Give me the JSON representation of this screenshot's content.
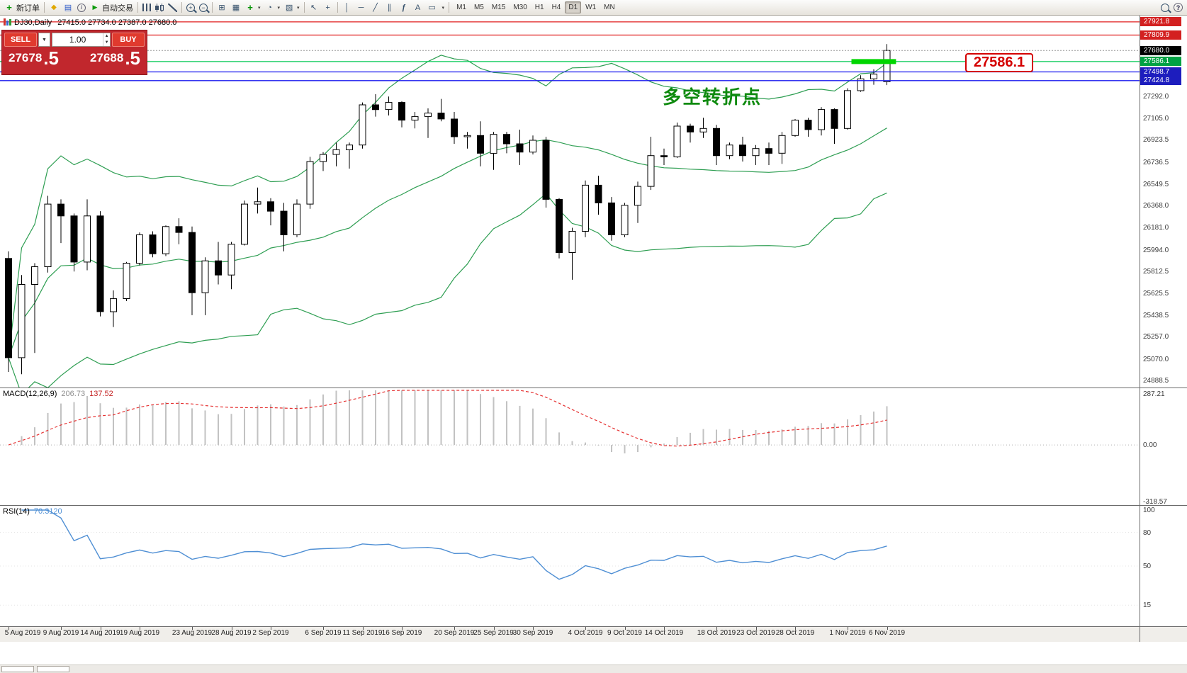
{
  "toolbar": {
    "new_order_label": "新订单",
    "autotrading_label": "自动交易",
    "timeframes": [
      "M1",
      "M5",
      "M15",
      "M30",
      "H1",
      "H4",
      "D1",
      "W1",
      "MN"
    ],
    "active_timeframe": "D1"
  },
  "chart": {
    "symbol_period": "DJ30,Daily",
    "ohlc_display": "27415.0 27734.0 27387.0 27680.0",
    "annotation": "多空转折点",
    "price_callout": "27586.1"
  },
  "trade_panel": {
    "sell_label": "SELL",
    "buy_label": "BUY",
    "lot_value": "1.00",
    "sell_price_main": "27678",
    "sell_price_frac": ".5",
    "buy_price_main": "27688",
    "buy_price_frac": ".5"
  },
  "price_scale": {
    "current": {
      "price": 27680.0,
      "label": "27680.0",
      "box_color": "#000000"
    },
    "lines": [
      {
        "price": 27921.8,
        "label": "27921.8",
        "color": "#e01f1f",
        "box_color": "#d32020"
      },
      {
        "price": 27809.9,
        "label": "27809.9",
        "color": "#e01f1f",
        "box_color": "#d32020"
      },
      {
        "price": 27586.1,
        "label": "27586.1",
        "color": "#00c853",
        "box_color": "#00a244"
      },
      {
        "price": 27498.7,
        "label": "27498.7",
        "color": "#1a1aee",
        "box_color": "#1d1dbe"
      },
      {
        "price": 27424.8,
        "label": "27424.8",
        "color": "#1a1aee",
        "box_color": "#1d1dbe"
      }
    ],
    "gridline_labels": [
      "27292.0",
      "27105.0",
      "26923.5",
      "26736.5",
      "26549.5",
      "26368.0",
      "26181.0",
      "25994.0",
      "25812.5",
      "25625.5",
      "25438.5",
      "25257.0",
      "25070.0",
      "24888.5"
    ],
    "highlight_segment": {
      "price": 27586.1,
      "start_index": 64.3,
      "end_index": 67.7,
      "color": "#00d600"
    }
  },
  "chart_data": {
    "type": "candlestick",
    "symbol": "DJ30",
    "timeframe": "Daily",
    "price_range_top": 27957,
    "price_range_bottom": 24870,
    "bollinger": {
      "period": 20,
      "deviation": 2,
      "color": "#2e9e52"
    },
    "dates": [
      "5 Aug",
      "6 Aug",
      "7 Aug",
      "8 Aug",
      "9 Aug",
      "12 Aug",
      "13 Aug",
      "14 Aug",
      "15 Aug",
      "16 Aug",
      "19 Aug",
      "20 Aug",
      "21 Aug",
      "22 Aug",
      "23 Aug",
      "26 Aug",
      "27 Aug",
      "28 Aug",
      "29 Aug",
      "30 Aug",
      "2 Sep",
      "3 Sep",
      "4 Sep",
      "5 Sep",
      "6 Sep",
      "9 Sep",
      "10 Sep",
      "11 Sep",
      "12 Sep",
      "13 Sep",
      "16 Sep",
      "17 Sep",
      "18 Sep",
      "19 Sep",
      "20 Sep",
      "23 Sep",
      "24 Sep",
      "25 Sep",
      "26 Sep",
      "27 Sep",
      "30 Sep",
      "1 Oct",
      "2 Oct",
      "3 Oct",
      "4 Oct",
      "7 Oct",
      "8 Oct",
      "9 Oct",
      "10 Oct",
      "11 Oct",
      "14 Oct",
      "15 Oct",
      "16 Oct",
      "17 Oct",
      "18 Oct",
      "21 Oct",
      "22 Oct",
      "23 Oct",
      "24 Oct",
      "25 Oct",
      "28 Oct",
      "29 Oct",
      "30 Oct",
      "31 Oct",
      "1 Nov",
      "4 Nov",
      "5 Nov",
      "6 Nov"
    ],
    "ohlc": [
      [
        25920,
        25980,
        24960,
        25080
      ],
      [
        25080,
        25780,
        24940,
        25700
      ],
      [
        25700,
        25880,
        25120,
        25850
      ],
      [
        25850,
        26450,
        25800,
        26380
      ],
      [
        26380,
        26420,
        26050,
        26280
      ],
      [
        26280,
        26300,
        25810,
        25890
      ],
      [
        25890,
        26420,
        25820,
        26280
      ],
      [
        26280,
        26320,
        25430,
        25470
      ],
      [
        25470,
        25650,
        25340,
        25580
      ],
      [
        25580,
        25890,
        25560,
        25880
      ],
      [
        25880,
        26140,
        25860,
        26120
      ],
      [
        26120,
        26150,
        25930,
        25960
      ],
      [
        25960,
        26200,
        25940,
        26190
      ],
      [
        26190,
        26260,
        26040,
        26140
      ],
      [
        26140,
        26190,
        25440,
        25630
      ],
      [
        25630,
        25930,
        25440,
        25900
      ],
      [
        25900,
        26060,
        25700,
        25780
      ],
      [
        25780,
        26060,
        25660,
        26040
      ],
      [
        26040,
        26410,
        26030,
        26380
      ],
      [
        26380,
        26520,
        26300,
        26400
      ],
      [
        26400,
        26430,
        26200,
        26320
      ],
      [
        26320,
        26390,
        25980,
        26120
      ],
      [
        26120,
        26420,
        26100,
        26380
      ],
      [
        26380,
        26780,
        26340,
        26740
      ],
      [
        26740,
        26820,
        26660,
        26800
      ],
      [
        26800,
        26900,
        26700,
        26840
      ],
      [
        26840,
        26900,
        26680,
        26880
      ],
      [
        26880,
        27240,
        26850,
        27220
      ],
      [
        27220,
        27310,
        27120,
        27180
      ],
      [
        27180,
        27290,
        27130,
        27240
      ],
      [
        27240,
        27250,
        27030,
        27090
      ],
      [
        27090,
        27160,
        27020,
        27120
      ],
      [
        27120,
        27190,
        26940,
        27150
      ],
      [
        27150,
        27270,
        27080,
        27100
      ],
      [
        27100,
        27160,
        26890,
        26950
      ],
      [
        26950,
        26990,
        26850,
        26960
      ],
      [
        26960,
        27080,
        26700,
        26810
      ],
      [
        26810,
        26990,
        26670,
        26970
      ],
      [
        26970,
        26990,
        26810,
        26890
      ],
      [
        26890,
        27010,
        26710,
        26820
      ],
      [
        26820,
        26960,
        26800,
        26920
      ],
      [
        26920,
        26950,
        26350,
        26420
      ],
      [
        26420,
        26430,
        25920,
        25970
      ],
      [
        25970,
        26180,
        25740,
        26150
      ],
      [
        26150,
        26580,
        26100,
        26540
      ],
      [
        26540,
        26620,
        26290,
        26390
      ],
      [
        26390,
        26440,
        26070,
        26120
      ],
      [
        26120,
        26390,
        26100,
        26370
      ],
      [
        26370,
        26570,
        26220,
        26530
      ],
      [
        26530,
        26950,
        26500,
        26790
      ],
      [
        26790,
        26850,
        26710,
        26780
      ],
      [
        26780,
        27070,
        26770,
        27040
      ],
      [
        27040,
        27060,
        26900,
        26990
      ],
      [
        26990,
        27110,
        26940,
        27020
      ],
      [
        27020,
        27050,
        26710,
        26790
      ],
      [
        26790,
        26900,
        26760,
        26880
      ],
      [
        26880,
        26950,
        26740,
        26790
      ],
      [
        26790,
        26880,
        26710,
        26850
      ],
      [
        26850,
        26900,
        26710,
        26810
      ],
      [
        26810,
        26990,
        26720,
        26960
      ],
      [
        26960,
        27100,
        26950,
        27090
      ],
      [
        27090,
        27110,
        26950,
        27010
      ],
      [
        27010,
        27200,
        26960,
        27180
      ],
      [
        27180,
        27190,
        26890,
        27020
      ],
      [
        27020,
        27360,
        27010,
        27340
      ],
      [
        27340,
        27470,
        27330,
        27440
      ],
      [
        27440,
        27520,
        27390,
        27480
      ],
      [
        27415,
        27734,
        27387,
        27680
      ]
    ],
    "x_tick_indices": [
      0,
      4,
      7,
      10,
      14,
      17,
      20,
      24,
      27,
      30,
      34,
      37,
      40,
      44,
      47,
      50,
      54,
      57,
      60,
      64,
      67
    ],
    "x_tick_suffix": " 2019",
    "macd": {
      "name": "MACD(12,26,9)",
      "value_main": "206.73",
      "value_signal": "137.52",
      "scale_max": 287.21,
      "scale_min": -318.57,
      "scale_labels": [
        "287.21",
        "0.00",
        "-318.57"
      ],
      "histogram_color": "#c2c2c2",
      "signal_color": "#e53030"
    },
    "rsi": {
      "name": "RSI(14)",
      "value": "70.3120",
      "color": "#4f8fd4",
      "scale_labels": [
        {
          "v": 100,
          "t": "100"
        },
        {
          "v": 80,
          "t": "80"
        },
        {
          "v": 50,
          "t": "50"
        },
        {
          "v": 15,
          "t": "15"
        }
      ]
    }
  }
}
